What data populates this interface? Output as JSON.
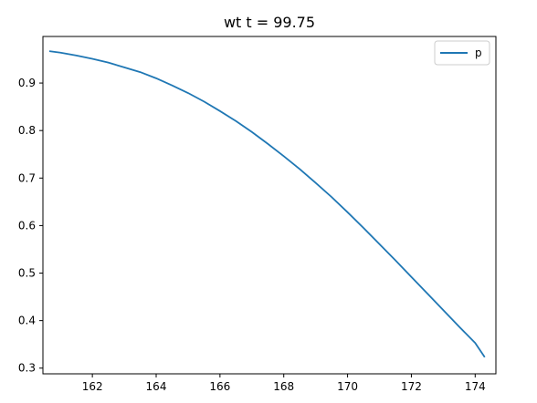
{
  "chart_data": {
    "type": "line",
    "title": "wt t = 99.75",
    "xlabel": "",
    "ylabel": "",
    "xlim": [
      160.45,
      174.65
    ],
    "ylim": [
      0.288,
      0.998
    ],
    "xticks": [
      162,
      164,
      166,
      168,
      170,
      172,
      174
    ],
    "yticks": [
      0.3,
      0.4,
      0.5,
      0.6,
      0.7,
      0.8,
      0.9
    ],
    "grid": false,
    "legend_position": "top-right",
    "series": [
      {
        "name": "p",
        "color": "#1f77b4",
        "x": [
          160.65,
          161.0,
          161.5,
          162.0,
          162.5,
          163.0,
          163.5,
          164.0,
          164.5,
          165.0,
          165.5,
          166.0,
          166.5,
          167.0,
          167.5,
          168.0,
          168.5,
          169.0,
          169.5,
          170.0,
          170.5,
          171.0,
          171.5,
          172.0,
          172.5,
          173.0,
          173.5,
          174.0,
          174.3
        ],
        "y": [
          0.967,
          0.964,
          0.958,
          0.951,
          0.943,
          0.933,
          0.923,
          0.91,
          0.895,
          0.879,
          0.861,
          0.841,
          0.82,
          0.797,
          0.772,
          0.746,
          0.719,
          0.69,
          0.66,
          0.628,
          0.595,
          0.561,
          0.527,
          0.492,
          0.457,
          0.422,
          0.387,
          0.353,
          0.323
        ]
      }
    ]
  }
}
